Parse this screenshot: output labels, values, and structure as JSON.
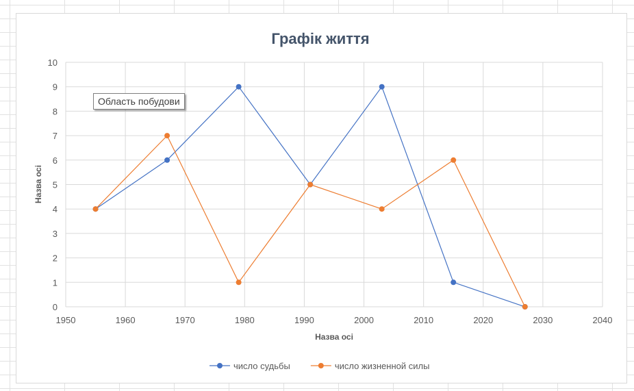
{
  "tooltip_text": "Область побудови",
  "colors": {
    "series1": "#4472c4",
    "series2": "#ed7d31",
    "gridline": "#d9d9d9"
  },
  "chart_data": {
    "type": "line",
    "title": "Графік життя",
    "xlabel": "Назва осі",
    "ylabel": "Назва осі",
    "xlim": [
      1950,
      2040
    ],
    "ylim": [
      0,
      10
    ],
    "x_ticks": [
      1950,
      1960,
      1970,
      1980,
      1990,
      2000,
      2010,
      2020,
      2030,
      2040
    ],
    "y_ticks": [
      0,
      1,
      2,
      3,
      4,
      5,
      6,
      7,
      8,
      9,
      10
    ],
    "grid": true,
    "legend_position": "bottom",
    "series": [
      {
        "name": "число судьбы",
        "x": [
          1955,
          1967,
          1979,
          1991,
          2003,
          2015,
          2027
        ],
        "y": [
          4,
          6,
          9,
          5,
          9,
          1,
          0
        ]
      },
      {
        "name": "число жизненной силы",
        "x": [
          1955,
          1967,
          1979,
          1991,
          2003,
          2015,
          2027
        ],
        "y": [
          4,
          7,
          1,
          5,
          4,
          6,
          0
        ]
      }
    ]
  }
}
